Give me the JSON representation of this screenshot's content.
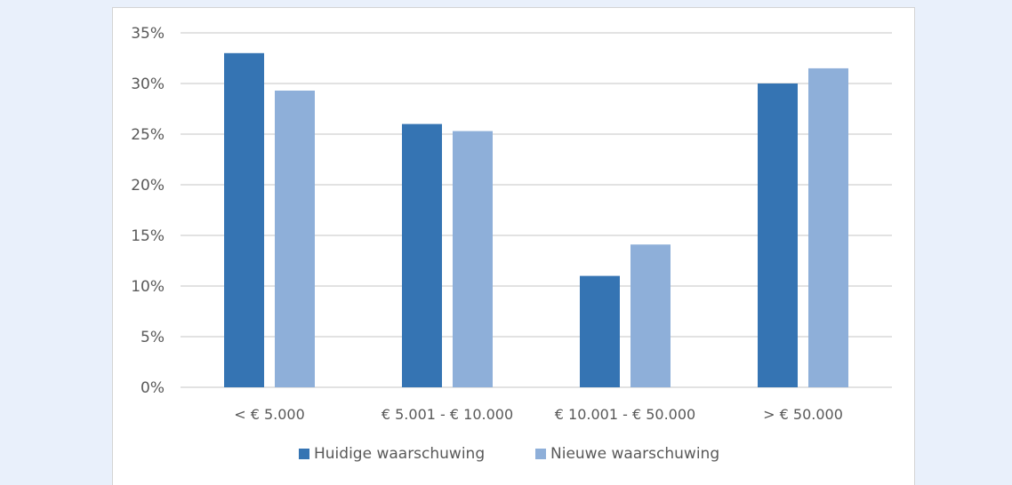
{
  "chart_data": {
    "type": "bar",
    "categories": [
      "< € 5.000",
      "€ 5.001 - € 10.000",
      "€ 10.001 - € 50.000",
      "> € 50.000"
    ],
    "series": [
      {
        "name": "Huidige waarschuwing",
        "color": "#3574b3",
        "values": [
          33,
          26,
          11,
          30
        ]
      },
      {
        "name": "Nieuwe waarschuwing",
        "color": "#8eafd9",
        "values": [
          29.3,
          25.3,
          14.1,
          31.5
        ]
      }
    ],
    "ylim": [
      0,
      35
    ],
    "yticks": [
      0,
      5,
      10,
      15,
      20,
      25,
      30,
      35
    ],
    "ytick_labels": [
      "0%",
      "5%",
      "10%",
      "15%",
      "20%",
      "25%",
      "30%",
      "35%"
    ],
    "grid": true,
    "gridline_color": "#d9d9d9",
    "legend_position": "bottom"
  }
}
